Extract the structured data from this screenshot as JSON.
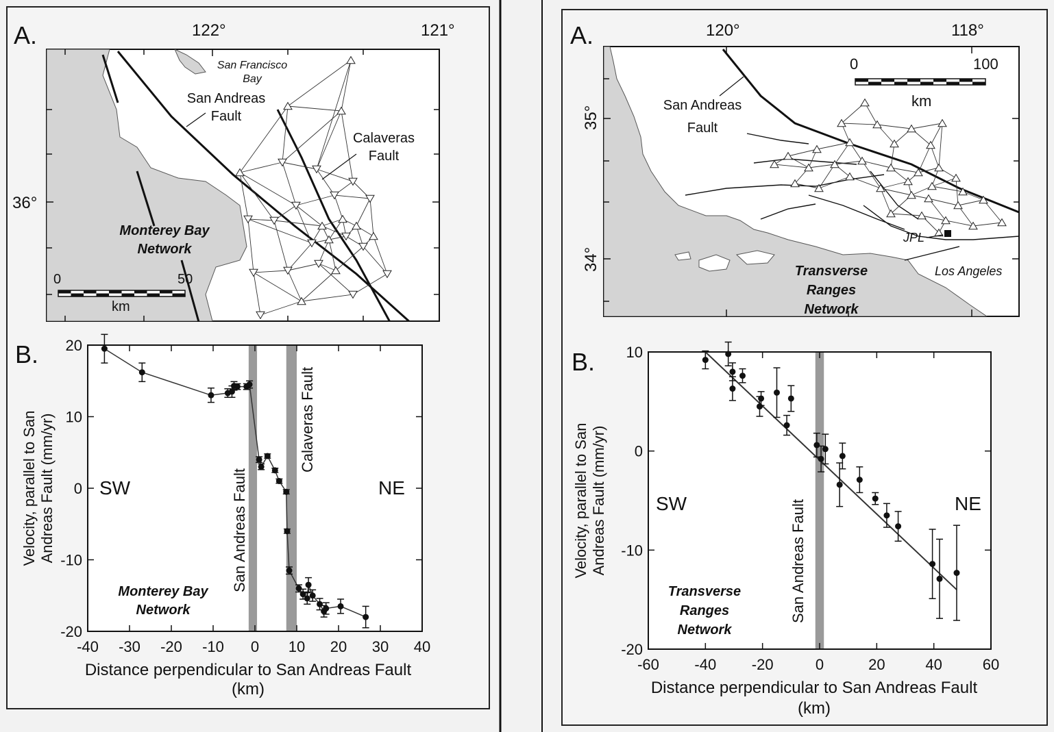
{
  "left_panel": {
    "map": {
      "panel_letter": "A.",
      "lon_labels": [
        "122°",
        "121°"
      ],
      "lat_labels": [
        "36°"
      ],
      "place_labels": {
        "bay": "San Francisco Bay",
        "san_andreas": "San Andreas Fault",
        "calaveras": "Calaveras Fault",
        "network": "Monterey Bay Network"
      },
      "scale_bar": {
        "start": "0",
        "end": "50",
        "unit": "km"
      }
    },
    "chart": {
      "panel_letter": "B.",
      "direction_left": "SW",
      "direction_right": "NE",
      "fault_labels": [
        "San Andreas Fault",
        "Calaveras Fault"
      ],
      "network_label": "Monterey Bay Network"
    }
  },
  "right_panel": {
    "map": {
      "panel_letter": "A.",
      "lon_labels": [
        "120°",
        "118°"
      ],
      "lat_labels": [
        "35°",
        "34°"
      ],
      "place_labels": {
        "san_andreas": "San Andreas Fault",
        "jpl": "JPL",
        "los_angeles": "Los Angeles",
        "network": "Transverse Ranges Network"
      },
      "scale_bar": {
        "start": "0",
        "end": "100",
        "unit": "km"
      }
    },
    "chart": {
      "panel_letter": "B.",
      "direction_left": "SW",
      "direction_right": "NE",
      "fault_labels": [
        "San Andreas Fault"
      ],
      "network_label": "Transverse Ranges Network"
    }
  },
  "chart_data": [
    {
      "type": "scatter",
      "title": "",
      "xlabel": "Distance perpendicular to San Andreas Fault (km)",
      "ylabel": "Velocity, parallel to San Andreas Fault (mm/yr)",
      "xlim": [
        -40,
        40
      ],
      "ylim": [
        -20,
        20
      ],
      "xticks": [
        -40,
        -30,
        -20,
        -10,
        0,
        10,
        20,
        30,
        40
      ],
      "yticks": [
        -20,
        -10,
        0,
        10,
        20
      ],
      "fault_zones": [
        [
          -1.5,
          0.5
        ],
        [
          7.5,
          10
        ]
      ],
      "connected": true,
      "points": [
        {
          "x": -36,
          "y": 19.5,
          "err": 2.0
        },
        {
          "x": -27,
          "y": 16.2,
          "err": 1.3
        },
        {
          "x": -10.5,
          "y": 13.0,
          "err": 1.0
        },
        {
          "x": -6.5,
          "y": 13.3,
          "err": 0.6
        },
        {
          "x": -5.5,
          "y": 13.5,
          "err": 0.8
        },
        {
          "x": -5.0,
          "y": 14.3,
          "err": 0.6
        },
        {
          "x": -4.2,
          "y": 14.2,
          "err": 0.4
        },
        {
          "x": -2.0,
          "y": 14.2,
          "err": 0.4
        },
        {
          "x": -1.3,
          "y": 14.5,
          "err": 0.5
        },
        {
          "x": 1.0,
          "y": 4.0,
          "err": 0.4
        },
        {
          "x": 1.5,
          "y": 3.0,
          "err": 0.4
        },
        {
          "x": 3.0,
          "y": 4.5,
          "err": 0.3
        },
        {
          "x": 4.8,
          "y": 2.5,
          "err": 0.3
        },
        {
          "x": 5.8,
          "y": 1.0,
          "err": 0.3
        },
        {
          "x": 7.5,
          "y": -0.5,
          "err": 0.3
        },
        {
          "x": 7.7,
          "y": -6.0,
          "err": 0.3
        },
        {
          "x": 8.2,
          "y": -11.5,
          "err": 0.5
        },
        {
          "x": 10.5,
          "y": -14.0,
          "err": 0.5
        },
        {
          "x": 11.5,
          "y": -14.8,
          "err": 0.7
        },
        {
          "x": 12.5,
          "y": -15.4,
          "err": 0.8
        },
        {
          "x": 12.8,
          "y": -13.5,
          "err": 1.0
        },
        {
          "x": 13.8,
          "y": -15.0,
          "err": 0.8
        },
        {
          "x": 15.5,
          "y": -16.2,
          "err": 0.8
        },
        {
          "x": 16.5,
          "y": -17.2,
          "err": 0.8
        },
        {
          "x": 17.0,
          "y": -16.8,
          "err": 0.8
        },
        {
          "x": 20.5,
          "y": -16.5,
          "err": 1.0
        },
        {
          "x": 26.5,
          "y": -18.0,
          "err": 1.5
        }
      ]
    },
    {
      "type": "scatter",
      "title": "",
      "xlabel": "Distance perpendicular to San Andreas Fault (km)",
      "ylabel": "Velocity, parallel to San Andreas Fault (mm/yr)",
      "xlim": [
        -60,
        60
      ],
      "ylim": [
        -20,
        10
      ],
      "xticks": [
        -60,
        -40,
        -20,
        0,
        20,
        40,
        60
      ],
      "yticks": [
        -20,
        -10,
        0,
        10
      ],
      "fault_zones": [
        [
          -1.5,
          1.5
        ]
      ],
      "fit_line": [
        [
          -40,
          10.0
        ],
        [
          48,
          -14.0
        ]
      ],
      "points": [
        {
          "x": -40,
          "y": 9.2,
          "err": 0.9
        },
        {
          "x": -32,
          "y": 9.8,
          "err": 1.2
        },
        {
          "x": -30.5,
          "y": 8.0,
          "err": 0.9
        },
        {
          "x": -30.5,
          "y": 6.3,
          "err": 1.2
        },
        {
          "x": -27,
          "y": 7.6,
          "err": 0.7
        },
        {
          "x": -21,
          "y": 4.5,
          "err": 1.0
        },
        {
          "x": -20.5,
          "y": 5.3,
          "err": 0.7
        },
        {
          "x": -15,
          "y": 5.9,
          "err": 2.5
        },
        {
          "x": -11.5,
          "y": 2.6,
          "err": 1.0
        },
        {
          "x": -10,
          "y": 5.3,
          "err": 1.3
        },
        {
          "x": -1,
          "y": 0.6,
          "err": 1.2
        },
        {
          "x": 0.5,
          "y": -0.8,
          "err": 1.3
        },
        {
          "x": 2,
          "y": 0.2,
          "err": 1.5
        },
        {
          "x": 7,
          "y": -3.4,
          "err": 2.2
        },
        {
          "x": 8,
          "y": -0.5,
          "err": 1.3
        },
        {
          "x": 14,
          "y": -2.9,
          "err": 1.3
        },
        {
          "x": 19.5,
          "y": -4.8,
          "err": 0.6
        },
        {
          "x": 23.5,
          "y": -6.5,
          "err": 1.2
        },
        {
          "x": 27.5,
          "y": -7.6,
          "err": 1.5
        },
        {
          "x": 39.5,
          "y": -11.4,
          "err": 3.5
        },
        {
          "x": 42,
          "y": -12.9,
          "err": 4.0
        },
        {
          "x": 48,
          "y": -12.3,
          "err": 4.8
        }
      ]
    }
  ]
}
